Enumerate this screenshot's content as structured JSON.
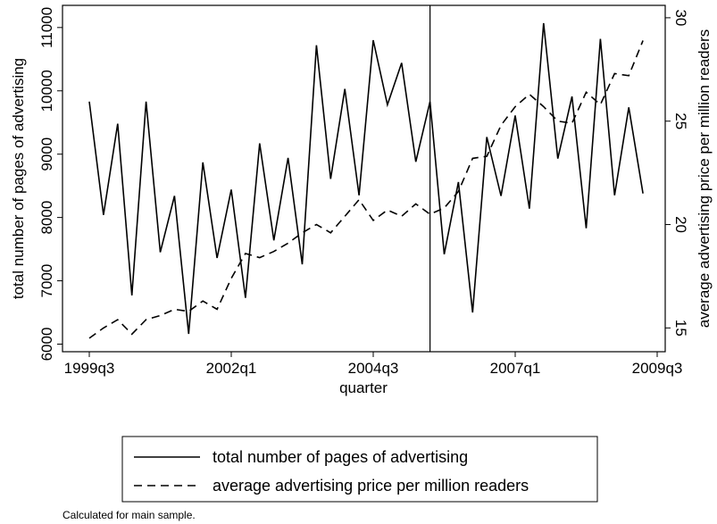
{
  "chart_data": {
    "type": "line",
    "x": [
      "1999q3",
      "1999q4",
      "2000q1",
      "2000q2",
      "2000q3",
      "2000q4",
      "2001q1",
      "2001q2",
      "2001q3",
      "2001q4",
      "2002q1",
      "2002q2",
      "2002q3",
      "2002q4",
      "2003q1",
      "2003q2",
      "2003q3",
      "2003q4",
      "2004q1",
      "2004q2",
      "2004q3",
      "2004q4",
      "2005q1",
      "2005q2",
      "2005q3",
      "2005q4",
      "2006q1",
      "2006q2",
      "2006q3",
      "2006q4",
      "2007q1",
      "2007q2",
      "2007q3",
      "2007q4",
      "2008q1",
      "2008q2",
      "2008q3",
      "2008q4",
      "2009q1",
      "2009q2",
      "2009q3"
    ],
    "series": [
      {
        "name": "total number of pages of advertising",
        "axis": "left",
        "style": "solid",
        "values": [
          9830,
          8040,
          9480,
          6770,
          9830,
          7450,
          8340,
          6160,
          8870,
          7360,
          8440,
          6730,
          9170,
          7640,
          8940,
          7260,
          10720,
          8610,
          10030,
          8350,
          10800,
          9780,
          10440,
          8880,
          9830,
          7420,
          8560,
          6500,
          9270,
          8340,
          9610,
          8140,
          11070,
          8930,
          9910,
          7830,
          10820,
          8350,
          9740,
          8380,
          null
        ]
      },
      {
        "name": "average advertising price per million readers",
        "axis": "right",
        "style": "dashed",
        "values": [
          14.5,
          15.0,
          15.4,
          14.7,
          15.4,
          15.6,
          15.9,
          15.8,
          16.3,
          15.9,
          17.4,
          18.6,
          18.4,
          18.7,
          19.1,
          19.6,
          20.0,
          19.6,
          20.4,
          21.2,
          20.2,
          20.7,
          20.4,
          21.0,
          20.5,
          20.8,
          21.6,
          23.2,
          23.3,
          24.8,
          25.7,
          26.3,
          25.7,
          25.0,
          24.9,
          26.4,
          25.8,
          27.3,
          27.2,
          28.9,
          null
        ]
      }
    ],
    "xlabel": "quarter",
    "ylabel_left": "total number of pages of advertising",
    "ylabel_right": "average advertising price per million readers",
    "x_ticks": [
      "1999q3",
      "2002q1",
      "2004q3",
      "2007q1",
      "2009q3"
    ],
    "y_left_ticks": [
      6000,
      7000,
      8000,
      9000,
      10000,
      11000
    ],
    "y_right_ticks": [
      15,
      20,
      25,
      30
    ],
    "ylim_left": [
      5880,
      11350
    ],
    "ylim_right": [
      13.85,
      30.6
    ],
    "vline_at": "2005q3",
    "grid": false,
    "legend_position": "bottom",
    "note": "Calculated for main sample."
  }
}
